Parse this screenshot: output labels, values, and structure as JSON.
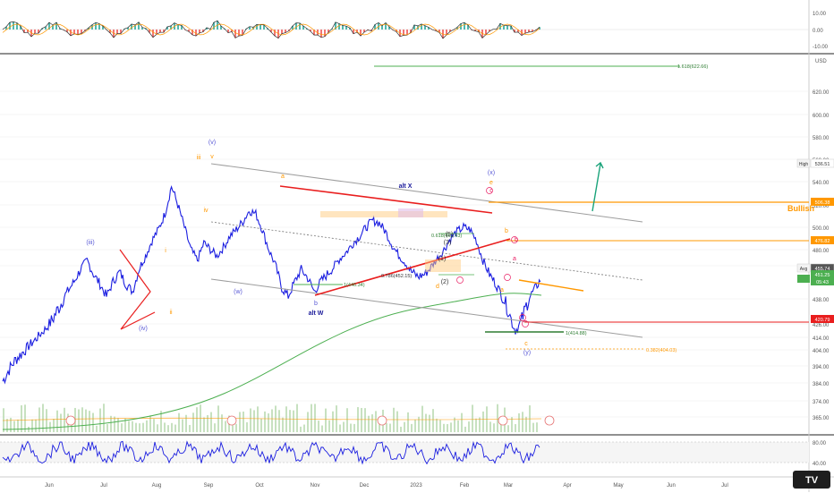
{
  "colors": {
    "price": "#1b1ee0",
    "sma": "#4caf50",
    "channel": "#9e9e9e",
    "triangle": "#e91e1e",
    "orange": "#ff9800",
    "pink": "#e91e63",
    "purple": "#5a5ad6",
    "teal": "#1aa37a",
    "volume": "#b9d9b0",
    "grid": "#eeeeee",
    "axis_text": "#555555"
  },
  "chart_data": [
    {
      "type": "line",
      "panel": "oscillator-top",
      "ylim": [
        -15,
        15
      ],
      "y_ticks": [
        "10.00",
        "0.00",
        "-10.00"
      ]
    },
    {
      "type": "line",
      "panel": "price",
      "y_unit_label": "USD",
      "y_ticks": [
        "620.00",
        "600.00",
        "580.00",
        "560.00",
        "540.00",
        "520.00",
        "500.00",
        "480.00",
        "465.00",
        "438.00",
        "426.00",
        "414.00",
        "404.00",
        "394.00",
        "384.00",
        "374.00",
        "365.00"
      ],
      "x_tick_labels": [
        "Jun",
        "Jul",
        "Aug",
        "Sep",
        "Oct",
        "Nov",
        "Dec",
        "2023",
        "Feb",
        "Mar",
        "Apr",
        "May",
        "Jun",
        "Jul"
      ],
      "price_tags": [
        {
          "label": "High",
          "value": "536.51",
          "kind": "high"
        },
        {
          "label": "",
          "value": "506.38",
          "kind": "orange"
        },
        {
          "label": "",
          "value": "476.82",
          "kind": "orange"
        },
        {
          "label": "Avg",
          "value": "455.74",
          "kind": "avg"
        },
        {
          "label": "",
          "value": "451.25",
          "kind": "green"
        },
        {
          "label": "",
          "value": "05:43",
          "kind": "green-sub"
        },
        {
          "label": "",
          "value": "420.79",
          "kind": "red"
        }
      ],
      "series": [
        {
          "name": "price",
          "values": [
            385,
            392,
            398,
            402,
            407,
            412,
            418,
            424,
            430,
            436,
            444,
            452,
            462,
            470,
            458,
            450,
            440,
            452,
            460,
            450,
            444,
            462,
            474,
            488,
            498,
            512,
            536,
            520,
            500,
            480,
            470,
            486,
            480,
            474,
            482,
            492,
            498,
            505,
            515,
            512,
            498,
            480,
            466,
            447,
            440,
            452,
            462,
            455,
            444,
            452,
            458,
            464,
            472,
            478,
            486,
            492,
            500,
            506,
            504,
            496,
            484,
            475,
            468,
            460,
            456,
            458,
            464,
            472,
            480,
            490,
            496,
            500,
            498,
            488,
            470,
            458,
            450,
            440,
            432,
            420,
            428,
            438,
            446,
            455
          ]
        }
      ],
      "annotations": {
        "fib_levels": [
          "1.618(622.66)",
          "0.618(462.43)",
          "0.786(452.15)",
          "1(446.34)",
          "1(414.88)",
          "0.382(404.03)"
        ],
        "wave_labels": [
          "(iii)",
          "(iv)",
          "iii",
          "v",
          "(v)",
          "iv",
          "ii",
          "i",
          "(w)",
          "b",
          "alt W",
          "a",
          "alt X",
          "(x)",
          "e",
          "c",
          "(5)",
          "(3)",
          "(1)",
          "(2)",
          "d",
          "a",
          "b",
          "c",
          "(y)",
          "b",
          "a"
        ],
        "bullish_label": "Bullish"
      }
    },
    {
      "type": "line",
      "panel": "oscillator-bottom",
      "y_ticks": [
        "80.00",
        "40.00"
      ]
    }
  ],
  "logo_text": "TV"
}
